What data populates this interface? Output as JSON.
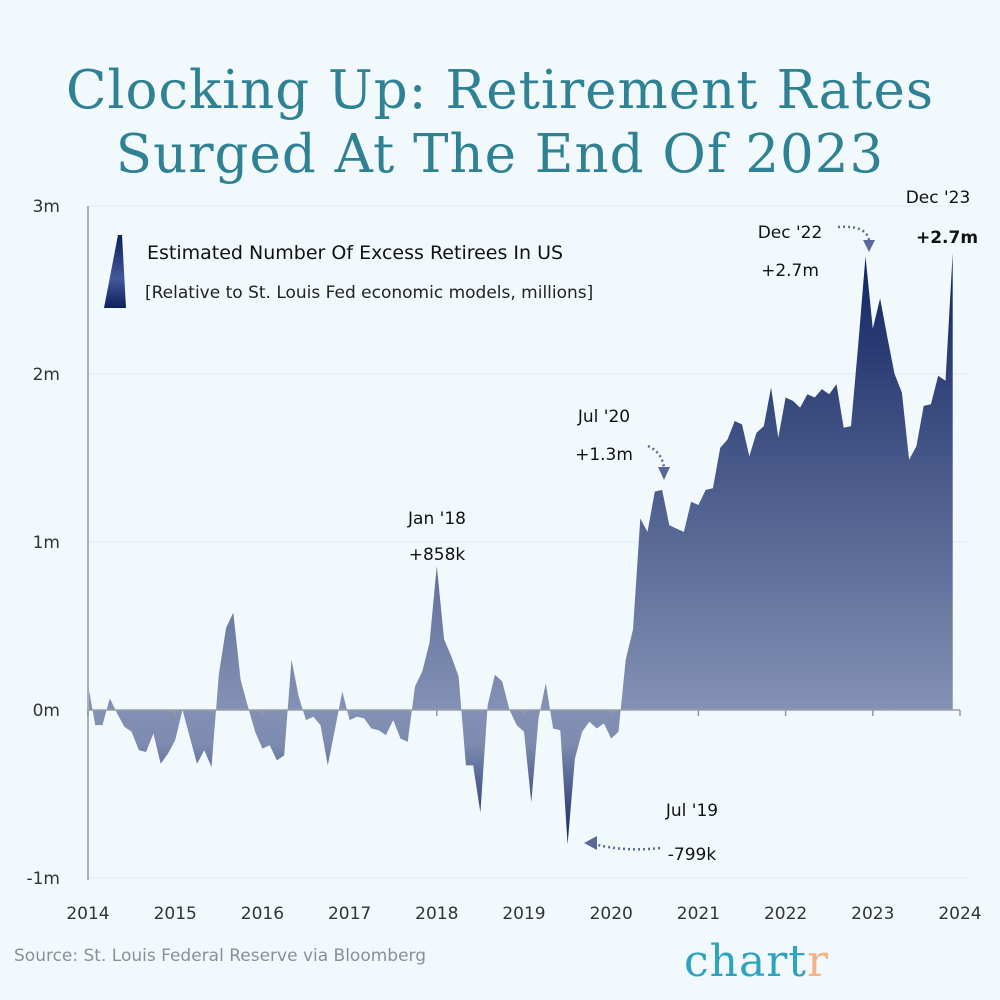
{
  "title": {
    "line1": "Clocking Up: Retirement Rates",
    "line2": "Surged At The End Of 2023"
  },
  "source": "Source: St. Louis Federal Reserve via Bloomberg",
  "logo": {
    "main": "chart",
    "accent": "r"
  },
  "colors": {
    "title": "#2e8294",
    "fill_dark": "#0c1f5e",
    "fill_light": "#8593b5",
    "logo_main": "#2ea3c0",
    "logo_accent": "#f4b48a",
    "background": "#f2f9fc"
  },
  "chart_data": {
    "type": "area",
    "title": "Estimated Number Of Excess Retirees In US",
    "subtitle": "[Relative to St. Louis Fed economic models, millions]",
    "xlabel": "",
    "ylabel": "",
    "xlim": [
      2014,
      2024
    ],
    "ylim": [
      -1,
      3
    ],
    "y_ticks": [
      {
        "v": 3,
        "label": "3m"
      },
      {
        "v": 2,
        "label": "2m"
      },
      {
        "v": 1,
        "label": "1m"
      },
      {
        "v": 0,
        "label": "0m"
      },
      {
        "v": -1,
        "label": "-1m"
      }
    ],
    "x_ticks": [
      "2014",
      "2015",
      "2016",
      "2017",
      "2018",
      "2019",
      "2020",
      "2021",
      "2022",
      "2023",
      "2024"
    ],
    "grid": true,
    "legend_position": "top-left",
    "monthly_values_by_year": {
      "2014": [
        0.15,
        -0.09,
        -0.09,
        0.07,
        -0.02,
        -0.1,
        -0.13,
        -0.24,
        -0.25,
        -0.14,
        -0.32,
        -0.26
      ],
      "2015": [
        -0.18,
        0.0,
        -0.16,
        -0.32,
        -0.24,
        -0.34,
        0.21,
        0.49,
        0.58,
        0.18,
        0.02,
        -0.13
      ],
      "2016": [
        -0.23,
        -0.21,
        -0.3,
        -0.27,
        0.3,
        0.08,
        -0.06,
        -0.04,
        -0.09,
        -0.33,
        -0.11,
        0.11
      ],
      "2017": [
        -0.06,
        -0.04,
        -0.05,
        -0.11,
        -0.12,
        -0.15,
        -0.06,
        -0.17,
        -0.19,
        0.14,
        0.23,
        0.4
      ],
      "2018": [
        0.858,
        0.42,
        0.32,
        0.2,
        -0.33,
        -0.33,
        -0.61,
        0.03,
        0.21,
        0.17,
        0.0,
        -0.09
      ],
      "2019": [
        -0.13,
        -0.55,
        -0.05,
        0.16,
        -0.11,
        -0.12,
        -0.799,
        -0.29,
        -0.13,
        -0.07,
        -0.11,
        -0.08
      ],
      "2020": [
        -0.17,
        -0.13,
        0.3,
        0.48,
        1.14,
        1.06,
        1.3,
        1.31,
        1.1,
        1.08,
        1.06,
        1.24
      ],
      "2021": [
        1.22,
        1.31,
        1.32,
        1.56,
        1.61,
        1.72,
        1.7,
        1.51,
        1.65,
        1.69,
        1.92,
        1.62
      ],
      "2022": [
        1.86,
        1.84,
        1.8,
        1.88,
        1.86,
        1.91,
        1.88,
        1.94,
        1.68,
        1.69,
        2.18,
        2.7
      ],
      "2023": [
        2.27,
        2.45,
        2.22,
        2.0,
        1.89,
        1.49,
        1.57,
        1.81,
        1.82,
        1.99,
        1.96,
        2.72
      ]
    },
    "annotations": [
      {
        "date": "Jan '18",
        "value": "+858k",
        "year": 2018,
        "month": 1,
        "bold": false
      },
      {
        "date": "Jul '19",
        "value": "-799k",
        "year": 2019,
        "month": 7,
        "bold": false
      },
      {
        "date": "Jul '20",
        "value": "+1.3m",
        "year": 2020,
        "month": 7,
        "bold": false
      },
      {
        "date": "Dec '22",
        "value": "+2.7m",
        "year": 2022,
        "month": 12,
        "bold": false
      },
      {
        "date": "Dec '23",
        "value": "+2.7m",
        "year": 2023,
        "month": 12,
        "bold": true
      }
    ]
  }
}
